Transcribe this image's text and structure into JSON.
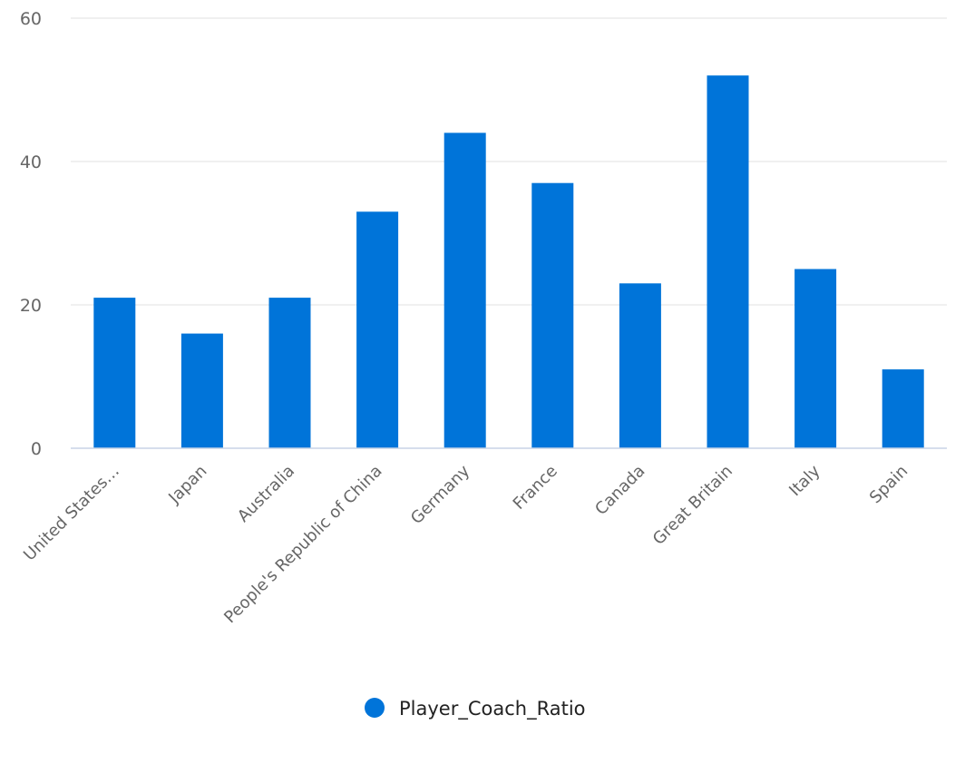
{
  "chart_data": {
    "type": "bar",
    "title": "",
    "xlabel": "",
    "ylabel": "",
    "categories": [
      "United States…",
      "Japan",
      "Australia",
      "People's Republic of China",
      "Germany",
      "France",
      "Canada",
      "Great Britain",
      "Italy",
      "Spain"
    ],
    "series": [
      {
        "name": "Player_Coach_Ratio",
        "values": [
          21,
          16,
          21,
          33,
          44,
          37,
          23,
          52,
          25,
          11
        ],
        "color": "#0074d9"
      }
    ],
    "ylim": [
      0,
      60
    ],
    "yticks": [
      "0",
      "20",
      "40",
      "60"
    ],
    "grid": true,
    "legend": "bottom-center"
  }
}
